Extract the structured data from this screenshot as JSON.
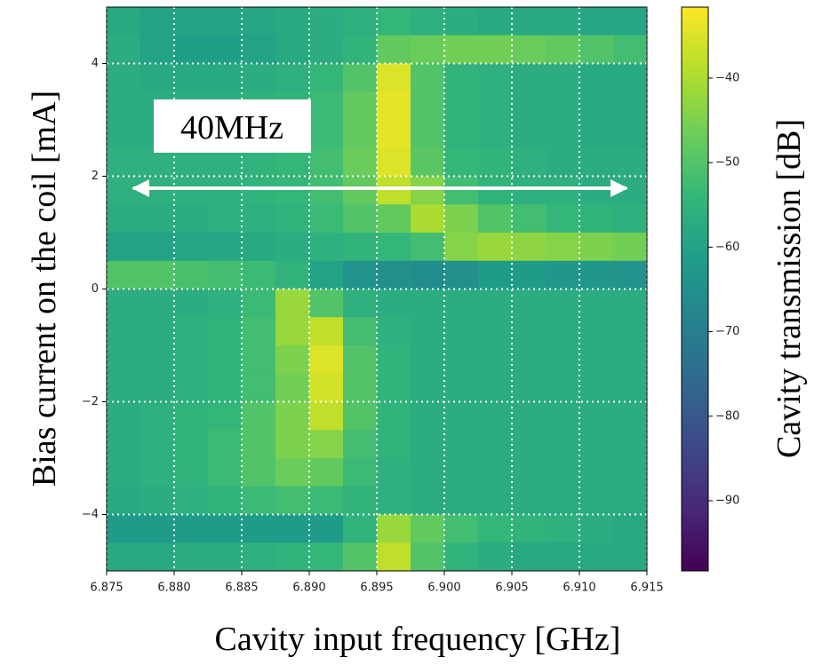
{
  "chart_data": {
    "type": "heatmap",
    "xlabel": "Cavity input frequency [GHz]",
    "ylabel": "Bias current on the coil [mA]",
    "colorbar_label": "Cavity transmission [dB]",
    "annotation": "40MHz",
    "xlim": [
      6.875,
      6.915
    ],
    "ylim": [
      -5,
      5
    ],
    "clim": [
      -98.3,
      -31.6
    ],
    "xticks": [
      6.875,
      {
        "value": 6.88,
        "label": "6.880"
      },
      6.885,
      {
        "value": 6.89,
        "label": "6.890"
      },
      6.895,
      {
        "value": 6.9,
        "label": "6.900"
      },
      6.905,
      {
        "value": 6.91,
        "label": "6.910"
      },
      6.915
    ],
    "yticks": [
      {
        "value": -4,
        "label": "−4"
      },
      {
        "value": -2,
        "label": "−2"
      },
      0,
      2,
      4
    ],
    "cticks": [
      {
        "value": -90,
        "label": "−90"
      },
      {
        "value": -80,
        "label": "−80"
      },
      {
        "value": -70,
        "label": "−70"
      },
      {
        "value": -60,
        "label": "−60"
      },
      {
        "value": -50,
        "label": "−50"
      },
      {
        "value": -40,
        "label": "−40"
      }
    ],
    "grid": true,
    "colormap": [
      "#440154",
      "#482878",
      "#3e4989",
      "#31688e",
      "#26828e",
      "#1f9e89",
      "#35b779",
      "#6ece58",
      "#b5de2b",
      "#fde725"
    ],
    "xbins": [
      6.875,
      6.8775,
      6.88,
      6.8825,
      6.885,
      6.8875,
      6.89,
      6.8925,
      6.895,
      6.8975,
      6.9,
      6.9025,
      6.905,
      6.9075,
      6.91,
      6.9125,
      6.915
    ],
    "ybins": [
      5,
      4.5,
      4,
      3.5,
      3,
      2.5,
      2,
      1.5,
      1,
      0.5,
      0,
      -0.5,
      -1,
      -1.5,
      -2,
      -2.5,
      -3,
      -3.5,
      -4,
      -4.5,
      -5
    ],
    "z": [
      [
        -58,
        -60,
        -60,
        -60,
        -59,
        -58,
        -57,
        -56,
        -54,
        -56,
        -57,
        -58,
        -58,
        -58,
        -59,
        -59
      ],
      [
        -57,
        -60,
        -61,
        -61,
        -60,
        -58,
        -57,
        -55,
        -48,
        -47,
        -46,
        -46,
        -47,
        -48,
        -50,
        -52
      ],
      [
        -57,
        -58,
        -58,
        -58,
        -57,
        -56,
        -54,
        -50,
        -35,
        -50,
        -55,
        -56,
        -57,
        -57,
        -58,
        -58
      ],
      [
        -57,
        -57,
        -57,
        -57,
        -56,
        -55,
        -53,
        -48,
        -34,
        -50,
        -55,
        -56,
        -57,
        -57,
        -58,
        -58
      ],
      [
        -57,
        -57,
        -57,
        -57,
        -56,
        -55,
        -53,
        -48,
        -34,
        -50,
        -55,
        -56,
        -57,
        -57,
        -58,
        -58
      ],
      [
        -56,
        -56,
        -56,
        -56,
        -55,
        -54,
        -52,
        -47,
        -35,
        -49,
        -54,
        -55,
        -56,
        -57,
        -57,
        -57
      ],
      [
        -56,
        -56,
        -56,
        -56,
        -55,
        -54,
        -52,
        -48,
        -38,
        -44,
        -52,
        -55,
        -56,
        -56,
        -57,
        -57
      ],
      [
        -57,
        -57,
        -57,
        -56,
        -56,
        -55,
        -53,
        -50,
        -48,
        -40,
        -45,
        -50,
        -52,
        -54,
        -55,
        -56
      ],
      [
        -60,
        -60,
        -59,
        -59,
        -58,
        -57,
        -56,
        -55,
        -54,
        -52,
        -44,
        -42,
        -43,
        -44,
        -45,
        -46
      ],
      [
        -50,
        -50,
        -51,
        -52,
        -53,
        -55,
        -60,
        -64,
        -65,
        -66,
        -65,
        -62,
        -62,
        -63,
        -63,
        -64
      ],
      [
        -57,
        -57,
        -57,
        -56,
        -53,
        -42,
        -50,
        -56,
        -57,
        -57,
        -57,
        -57,
        -57,
        -57,
        -57,
        -57
      ],
      [
        -57,
        -57,
        -56,
        -55,
        -52,
        -42,
        -38,
        -52,
        -56,
        -57,
        -57,
        -57,
        -57,
        -57,
        -57,
        -57
      ],
      [
        -57,
        -57,
        -56,
        -55,
        -52,
        -45,
        -35,
        -50,
        -55,
        -57,
        -57,
        -57,
        -57,
        -57,
        -57,
        -57
      ],
      [
        -57,
        -57,
        -56,
        -55,
        -52,
        -46,
        -36,
        -50,
        -55,
        -57,
        -57,
        -57,
        -57,
        -57,
        -57,
        -57
      ],
      [
        -57,
        -56,
        -55,
        -54,
        -50,
        -45,
        -38,
        -50,
        -55,
        -57,
        -57,
        -57,
        -57,
        -57,
        -57,
        -57
      ],
      [
        -57,
        -56,
        -55,
        -53,
        -50,
        -45,
        -44,
        -52,
        -55,
        -57,
        -57,
        -57,
        -57,
        -57,
        -57,
        -57
      ],
      [
        -57,
        -56,
        -55,
        -53,
        -50,
        -47,
        -48,
        -53,
        -56,
        -57,
        -57,
        -57,
        -57,
        -57,
        -57,
        -57
      ],
      [
        -58,
        -57,
        -56,
        -55,
        -53,
        -52,
        -53,
        -55,
        -56,
        -57,
        -57,
        -57,
        -57,
        -57,
        -57,
        -57
      ],
      [
        -62,
        -62,
        -62,
        -62,
        -62,
        -62,
        -62,
        -55,
        -42,
        -48,
        -52,
        -54,
        -55,
        -56,
        -57,
        -58
      ],
      [
        -58,
        -58,
        -57,
        -57,
        -56,
        -55,
        -54,
        -50,
        -38,
        -50,
        -55,
        -57,
        -58,
        -58,
        -58,
        -58
      ]
    ]
  }
}
